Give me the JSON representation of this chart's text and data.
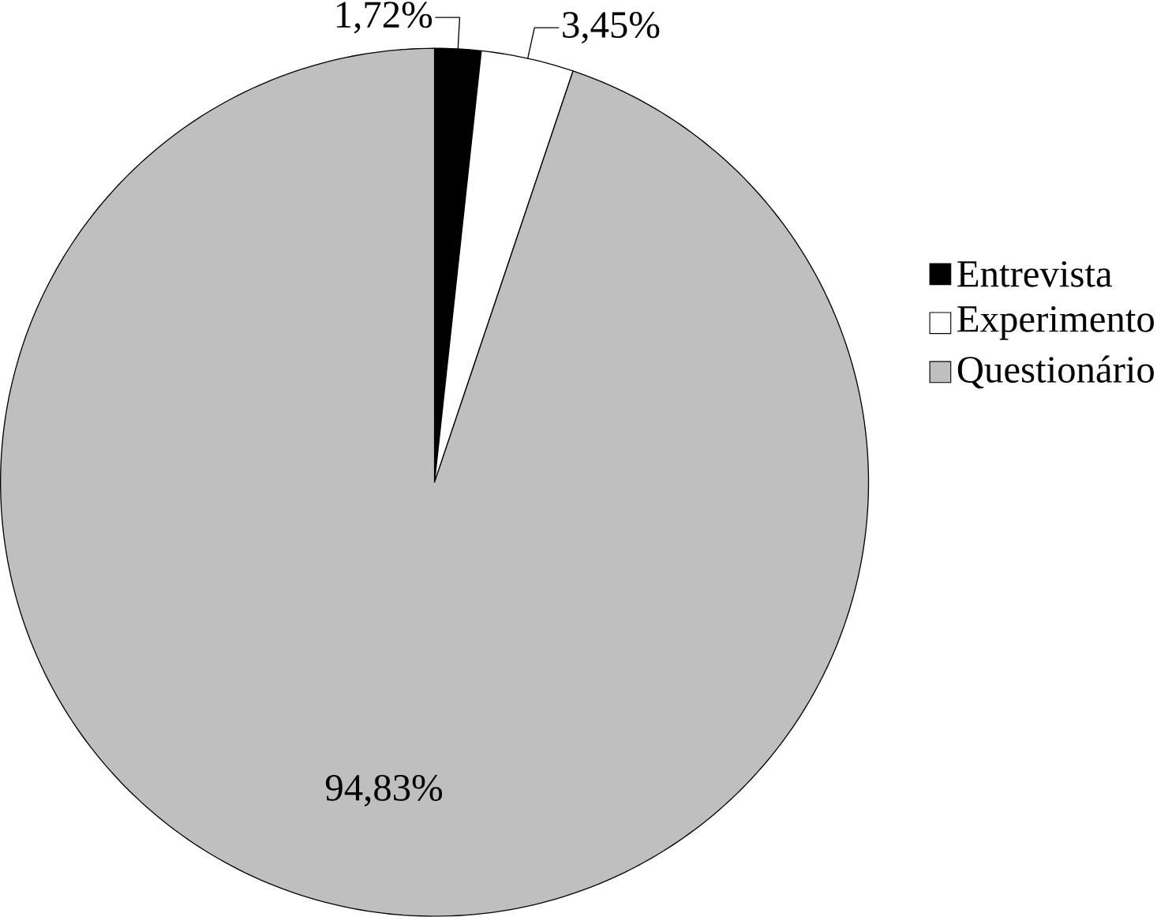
{
  "chart_data": {
    "type": "pie",
    "categories": [
      "Entrevista",
      "Experimento",
      "Questionário"
    ],
    "values": [
      1.72,
      3.45,
      94.83
    ],
    "value_labels": [
      "1,72%",
      "3,45%",
      "94,83%"
    ],
    "colors": [
      "#000000",
      "#ffffff",
      "#bfbfbf"
    ],
    "legend": "right"
  }
}
